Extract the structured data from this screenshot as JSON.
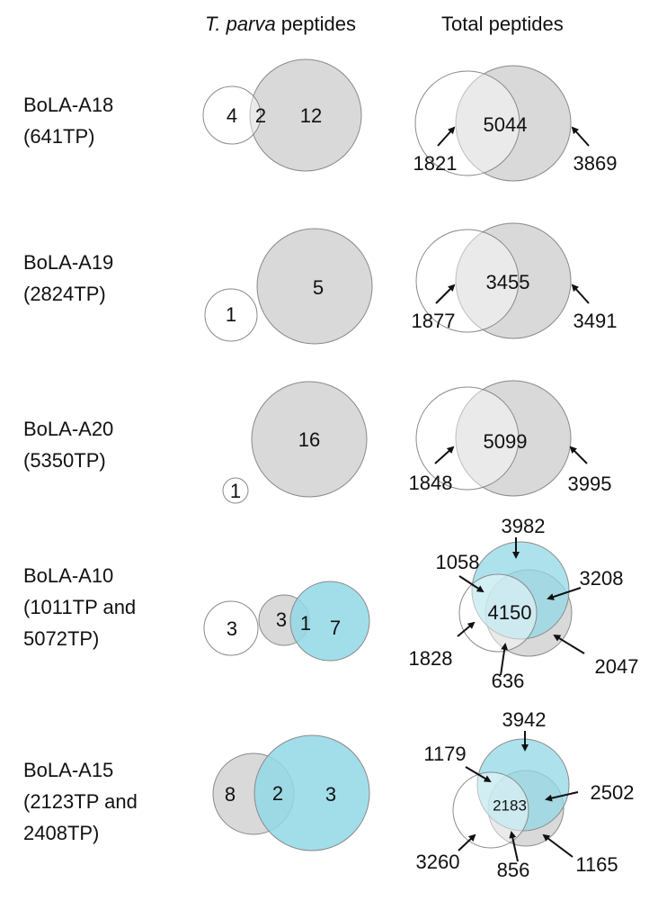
{
  "headers": {
    "tparva_italic": "T. parva",
    "tparva_rest": " peptides",
    "total": "Total peptides"
  },
  "colors": {
    "gray": "#d9d9d9",
    "cyan": "#92d8e6",
    "white": "#ffffff",
    "outline": "#8a8a8a"
  },
  "rows": [
    {
      "name": "BoLA-A18",
      "sub": "(641TP)",
      "tparva": [
        "4",
        "2",
        "12"
      ],
      "total": {
        "center": "5044",
        "left": "1821",
        "right": "3869"
      }
    },
    {
      "name": "BoLA-A19",
      "sub": "(2824TP)",
      "tparva": [
        "1",
        "5"
      ],
      "total": {
        "center": "3455",
        "left": "1877",
        "right": "3491"
      }
    },
    {
      "name": "BoLA-A20",
      "sub": "(5350TP)",
      "tparva": [
        "16",
        "1"
      ],
      "total": {
        "center": "5099",
        "left": "1848",
        "right": "3995"
      }
    },
    {
      "name": "BoLA-A10",
      "sub": "(1011TP and",
      "sub2": " 5072TP)",
      "tparva": [
        "3",
        "3",
        "1",
        "7"
      ],
      "total": {
        "top": "3982",
        "upper_left": "1058",
        "right": "3208",
        "center": "4150",
        "lower_left": "1828",
        "bottom": "636",
        "lower_right": "2047"
      }
    },
    {
      "name": "BoLA-A15",
      "sub": "(2123TP and",
      "sub2": "2408TP)",
      "tparva": [
        "8",
        "2",
        "3"
      ],
      "total": {
        "top": "3942",
        "upper_left": "1179",
        "right": "2502",
        "center": "2183",
        "lower_left": "3260",
        "bottom": "856",
        "lower_right": "1165"
      }
    }
  ]
}
